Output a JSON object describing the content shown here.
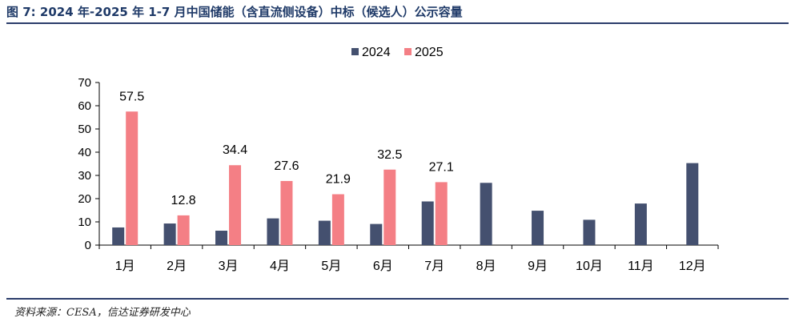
{
  "figure": {
    "title": "图 7:  2024 年-2025 年 1-7 月中国储能（含直流侧设备）中标（候选人）公示容量",
    "source": "资料来源：CESA，信达证券研发中心"
  },
  "colors": {
    "series_2024": "#44506f",
    "series_2025": "#f47f85",
    "rule": "#2b3d6b"
  },
  "chart_data": {
    "type": "bar",
    "title": "",
    "xlabel": "",
    "ylabel": "",
    "categories": [
      "1月",
      "2月",
      "3月",
      "4月",
      "5月",
      "6月",
      "7月",
      "8月",
      "9月",
      "10月",
      "11月",
      "12月"
    ],
    "series": [
      {
        "name": "2024",
        "values": [
          7.6,
          9.3,
          6.2,
          11.5,
          10.5,
          9.1,
          18.8,
          26.8,
          14.8,
          10.9,
          17.9,
          35.3
        ]
      },
      {
        "name": "2025",
        "values": [
          57.5,
          12.8,
          34.4,
          27.6,
          21.9,
          32.5,
          27.1,
          null,
          null,
          null,
          null,
          null
        ]
      }
    ],
    "data_labels": {
      "2025": [
        "57.5",
        "12.8",
        "34.4",
        "27.6",
        "21.9",
        "32.5",
        "27.1"
      ]
    },
    "ylim": [
      0,
      70
    ],
    "yticks": [
      0,
      10,
      20,
      30,
      40,
      50,
      60,
      70
    ],
    "grid": false,
    "legend_position": "top-center"
  }
}
